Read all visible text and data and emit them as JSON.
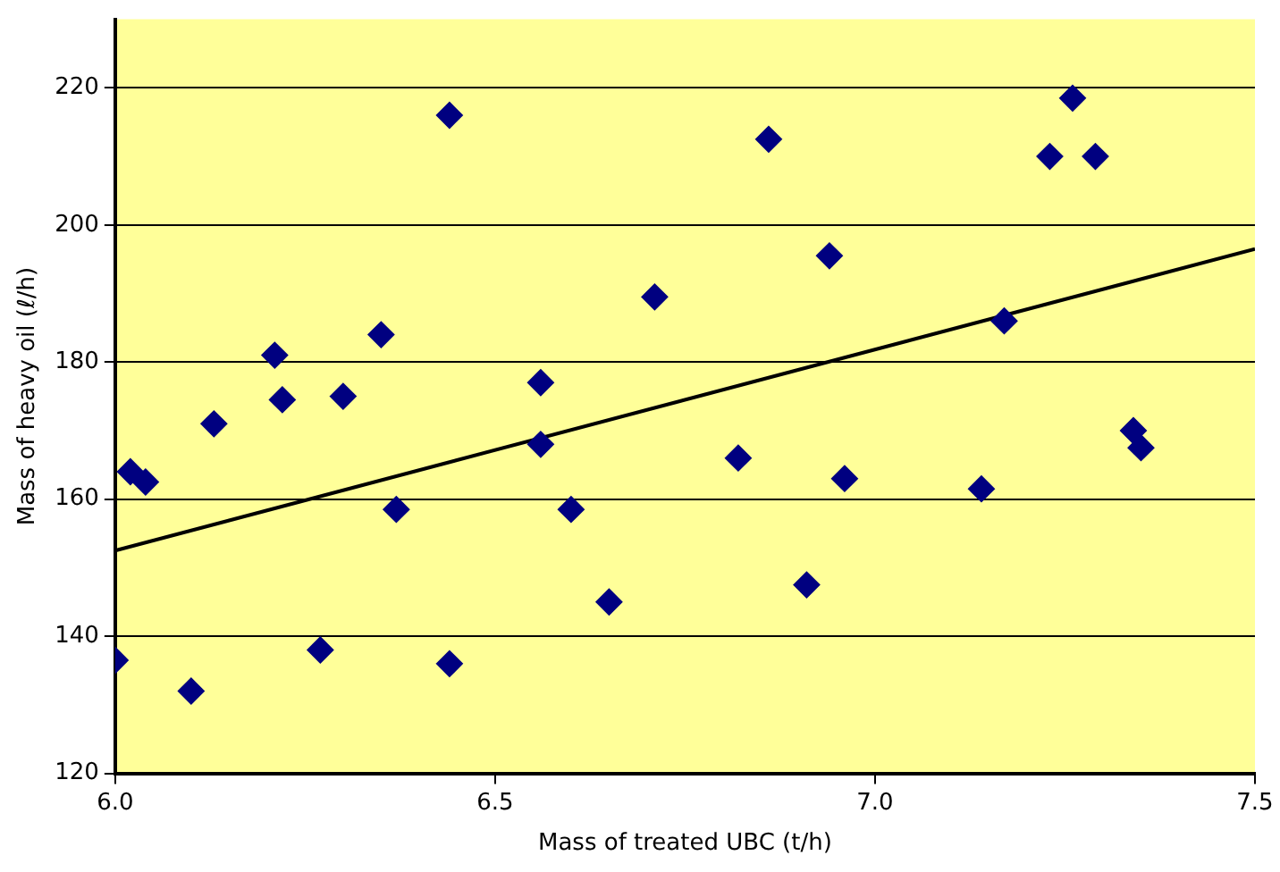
{
  "chart_data": {
    "type": "scatter",
    "xlabel": "Mass of treated UBC (t/h)",
    "ylabel": "Mass of heavy oil (ℓ/h)",
    "xlim": [
      6.0,
      7.5
    ],
    "xticks": [
      {
        "value": 6.0,
        "label": "6.0"
      },
      {
        "value": 6.5,
        "label": "6.5"
      },
      {
        "value": 7.0,
        "label": "7.0"
      },
      {
        "value": 7.5,
        "label": "7.5"
      }
    ],
    "ylim": [
      120,
      230
    ],
    "yticks": [
      120,
      140,
      160,
      180,
      200,
      220
    ],
    "grid": "y",
    "series": [
      {
        "color": "#000080",
        "marker": "diamond",
        "x": [
          6.0,
          6.02,
          6.04,
          6.1,
          6.13,
          6.21,
          6.22,
          6.27,
          6.3,
          6.35,
          6.37,
          6.44,
          6.44,
          6.56,
          6.56,
          6.6,
          6.65,
          6.71,
          6.82,
          6.86,
          6.91,
          6.94,
          6.96,
          7.14,
          7.17,
          7.23,
          7.26,
          7.29,
          7.34,
          7.35
        ],
        "values": [
          136.5,
          164,
          162.5,
          132,
          171,
          181,
          174.5,
          138,
          175,
          184,
          158.5,
          216,
          136,
          177,
          168,
          158.5,
          145,
          189.5,
          166,
          212.5,
          147.5,
          195.5,
          163,
          161.5,
          186,
          210,
          218.5,
          210,
          170,
          167.5
        ]
      },
      {
        "type": "line",
        "marker": "none",
        "color": "#000000",
        "x": [
          6.0,
          7.5
        ],
        "values": [
          152.5,
          196.5
        ]
      }
    ]
  }
}
